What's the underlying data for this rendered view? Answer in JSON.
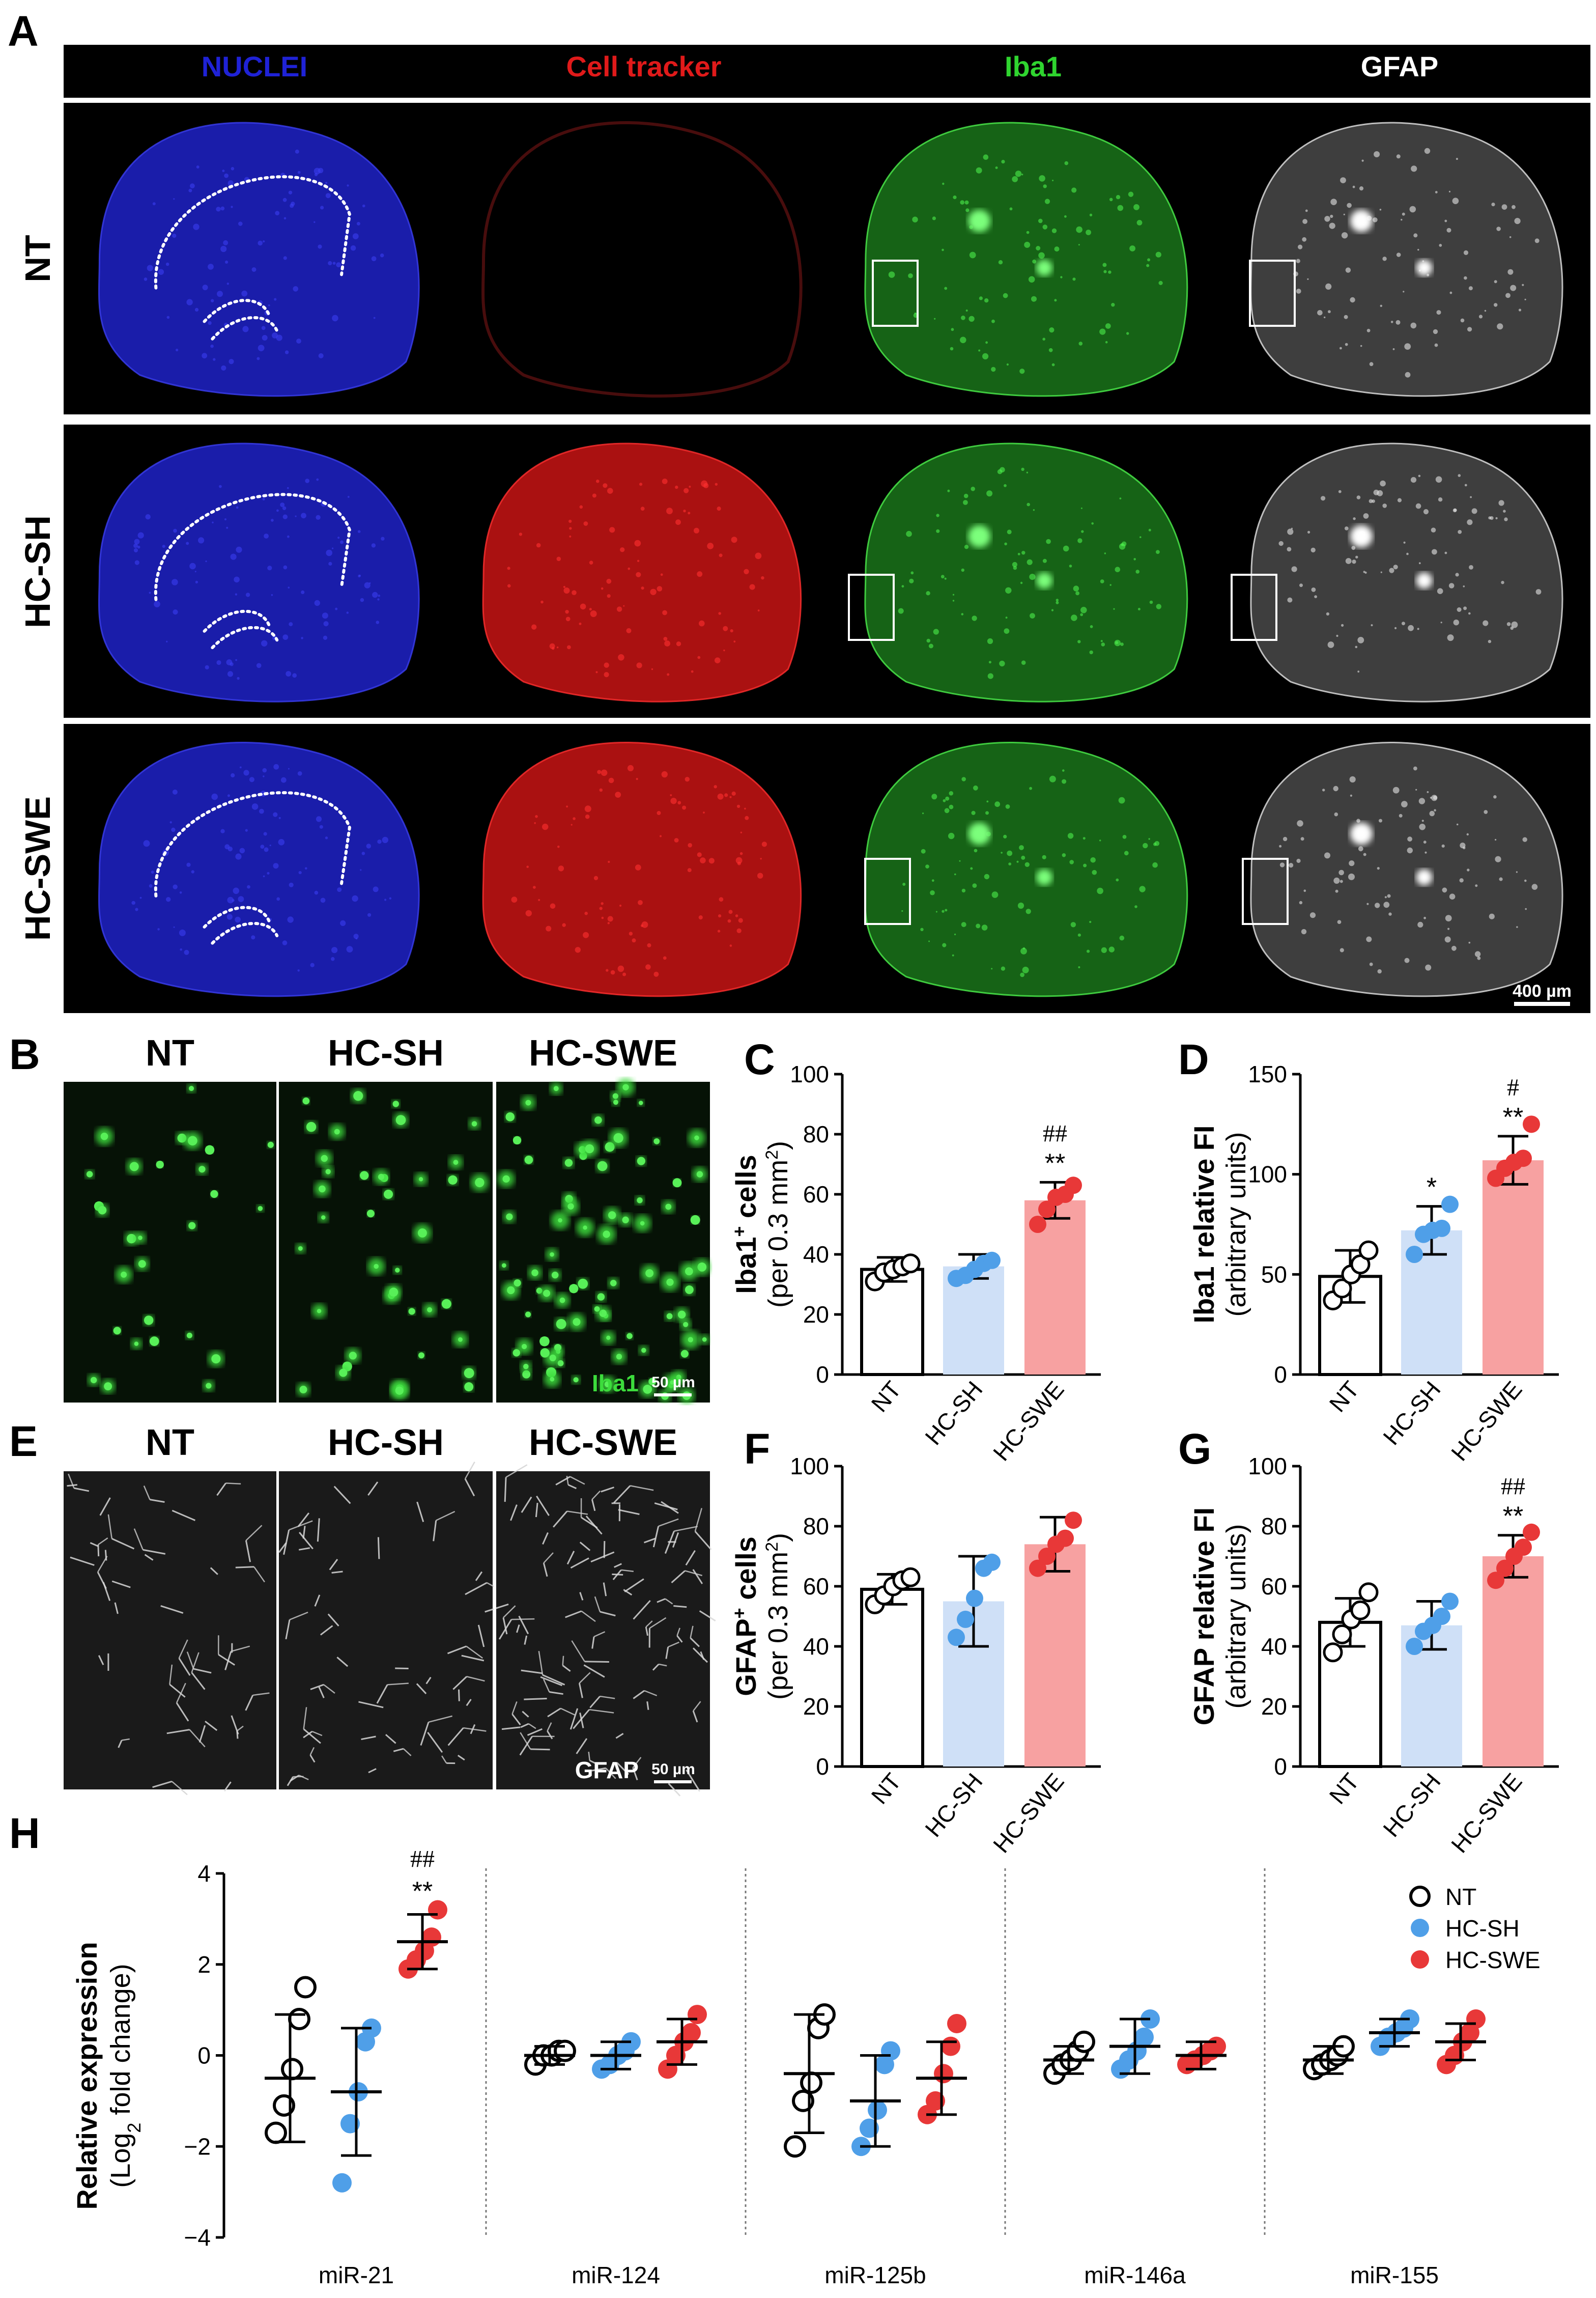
{
  "panel_letters": {
    "a": "A",
    "b": "B",
    "c": "C",
    "d": "D",
    "e": "E",
    "f": "F",
    "g": "G",
    "h": "H"
  },
  "panel_a": {
    "channels": [
      {
        "label": "NUCLEI",
        "color": "#1f22d6"
      },
      {
        "label": "Cell tracker",
        "color": "#e01a1a"
      },
      {
        "label": "Iba1",
        "color": "#2fd42f"
      },
      {
        "label": "GFAP",
        "color": "#ffffff"
      }
    ],
    "rows": [
      "NT",
      "HC-SH",
      "HC-SWE"
    ],
    "scale_bar": "400 µm"
  },
  "panel_b": {
    "columns": [
      "NT",
      "HC-SH",
      "HC-SWE"
    ],
    "stain": "Iba1",
    "scale_bar": "50 µm"
  },
  "panel_e": {
    "columns": [
      "NT",
      "HC-SH",
      "HC-SWE"
    ],
    "stain": "GFAP",
    "scale_bar": "50 µm"
  },
  "colors": {
    "NT": "#ffffff",
    "HC-SH": "#cfe0f7",
    "HC-SWE": "#f7a1a1",
    "dot_NT": "#ffffff",
    "dot_SH": "#4f9fe8",
    "dot_SWE": "#e83838"
  },
  "chart_data": [
    {
      "id": "C",
      "type": "bar",
      "categories": [
        "NT",
        "HC-SH",
        "HC-SWE"
      ],
      "ylabel": "Iba1+ cells",
      "ylabel_main": "Iba1",
      "ylabel_sup": "+",
      "ylabel_rest": " cells",
      "ylabel2": "(per 0.3 mm2)",
      "ylabel2_main": "(per 0.3 mm",
      "ylabel2_sup": "2",
      "ylabel2_end": ")",
      "ylim": [
        0,
        100
      ],
      "yticks": [
        0,
        20,
        40,
        60,
        80,
        100
      ],
      "means": [
        35,
        36,
        58
      ],
      "sd": [
        4,
        4,
        6
      ],
      "points": [
        [
          31,
          34,
          35,
          36,
          37
        ],
        [
          32,
          33,
          35,
          37,
          38
        ],
        [
          50,
          55,
          59,
          60,
          63
        ]
      ],
      "annotations": [
        {
          "cat": "HC-SWE",
          "top": "##",
          "bottom": "**"
        }
      ]
    },
    {
      "id": "D",
      "type": "bar",
      "categories": [
        "NT",
        "HC-SH",
        "HC-SWE"
      ],
      "ylabel": "Iba1 relative FI",
      "ylabel2": "(arbitrary units)",
      "ylim": [
        0,
        150
      ],
      "yticks": [
        0,
        50,
        100,
        150
      ],
      "means": [
        49,
        72,
        107
      ],
      "sd": [
        13,
        12,
        12
      ],
      "points": [
        [
          37,
          43,
          50,
          55,
          62
        ],
        [
          60,
          70,
          72,
          73,
          85
        ],
        [
          98,
          103,
          106,
          108,
          125
        ]
      ],
      "annotations": [
        {
          "cat": "HC-SH",
          "top": "",
          "bottom": "*"
        },
        {
          "cat": "HC-SWE",
          "top": "#",
          "bottom": "**"
        }
      ]
    },
    {
      "id": "F",
      "type": "bar",
      "categories": [
        "NT",
        "HC-SH",
        "HC-SWE"
      ],
      "ylabel": "GFAP+ cells",
      "ylabel_main": "GFAP",
      "ylabel_sup": "+",
      "ylabel_rest": " cells",
      "ylabel2": "(per 0.3 mm2)",
      "ylabel2_main": "(per 0.3 mm",
      "ylabel2_sup": "2",
      "ylabel2_end": ")",
      "ylim": [
        0,
        100
      ],
      "yticks": [
        0,
        20,
        40,
        60,
        80,
        100
      ],
      "means": [
        59,
        55,
        74
      ],
      "sd": [
        5,
        15,
        9
      ],
      "points": [
        [
          54,
          57,
          60,
          62,
          63
        ],
        [
          43,
          49,
          56,
          66,
          68
        ],
        [
          66,
          70,
          74,
          76,
          82
        ]
      ],
      "annotations": []
    },
    {
      "id": "G",
      "type": "bar",
      "categories": [
        "NT",
        "HC-SH",
        "HC-SWE"
      ],
      "ylabel": "GFAP relative FI",
      "ylabel2": "(arbitrary units)",
      "ylim": [
        0,
        100
      ],
      "yticks": [
        0,
        20,
        40,
        60,
        80,
        100
      ],
      "means": [
        48,
        47,
        70
      ],
      "sd": [
        8,
        8,
        7
      ],
      "points": [
        [
          38,
          44,
          49,
          52,
          58
        ],
        [
          40,
          45,
          47,
          50,
          55
        ],
        [
          62,
          66,
          70,
          73,
          78
        ]
      ],
      "annotations": [
        {
          "cat": "HC-SWE",
          "top": "##",
          "bottom": "**"
        }
      ]
    },
    {
      "id": "H",
      "type": "scatter",
      "categories": [
        "miR-21",
        "miR-124",
        "miR-125b",
        "miR-146a",
        "miR-155"
      ],
      "ylabel": "Relative expression",
      "ylabel2": "(Log2 fold change)",
      "ylabel2_main": "(Log",
      "ylabel2_sub": "2",
      "ylabel2_end": " fold change)",
      "ylim": [
        -4,
        4
      ],
      "yticks": [
        -4,
        -2,
        0,
        2,
        4
      ],
      "series": [
        {
          "name": "NT",
          "means": [
            -0.5,
            0.0,
            -0.4,
            -0.1,
            -0.1
          ],
          "sd": [
            1.4,
            0.2,
            1.3,
            0.3,
            0.3
          ],
          "points": [
            [
              -1.7,
              -1.1,
              -0.3,
              0.8,
              1.5
            ],
            [
              -0.2,
              0.0,
              0.0,
              0.1,
              0.1
            ],
            [
              -2.0,
              -1.0,
              -0.6,
              0.6,
              0.9
            ],
            [
              -0.4,
              -0.2,
              -0.1,
              0.1,
              0.3
            ],
            [
              -0.3,
              -0.2,
              -0.1,
              0.0,
              0.2
            ]
          ]
        },
        {
          "name": "HC-SH",
          "means": [
            -0.8,
            0.0,
            -1.0,
            0.2,
            0.5
          ],
          "sd": [
            1.4,
            0.3,
            1.0,
            0.6,
            0.3
          ],
          "points": [
            [
              -2.8,
              -1.5,
              -0.8,
              0.3,
              0.6
            ],
            [
              -0.3,
              -0.2,
              0.0,
              0.1,
              0.3
            ],
            [
              -2.0,
              -1.6,
              -1.2,
              -0.2,
              0.1
            ],
            [
              -0.3,
              -0.1,
              0.1,
              0.4,
              0.8
            ],
            [
              0.2,
              0.4,
              0.5,
              0.6,
              0.8
            ]
          ]
        },
        {
          "name": "HC-SWE",
          "means": [
            2.5,
            0.3,
            -0.5,
            0.0,
            0.3
          ],
          "sd": [
            0.6,
            0.5,
            0.8,
            0.3,
            0.4
          ],
          "points": [
            [
              1.9,
              2.1,
              2.3,
              2.6,
              3.2
            ],
            [
              -0.3,
              0.0,
              0.3,
              0.5,
              0.9
            ],
            [
              -1.3,
              -1.0,
              -0.4,
              0.2,
              0.7
            ],
            [
              -0.2,
              -0.1,
              0.0,
              0.1,
              0.2
            ],
            [
              -0.2,
              0.0,
              0.3,
              0.5,
              0.8
            ]
          ]
        }
      ],
      "legend": [
        "NT",
        "HC-SH",
        "HC-SWE"
      ],
      "annotations": [
        {
          "cat": "miR-21",
          "series": "HC-SWE",
          "top": "##",
          "bottom": "**"
        }
      ]
    }
  ]
}
